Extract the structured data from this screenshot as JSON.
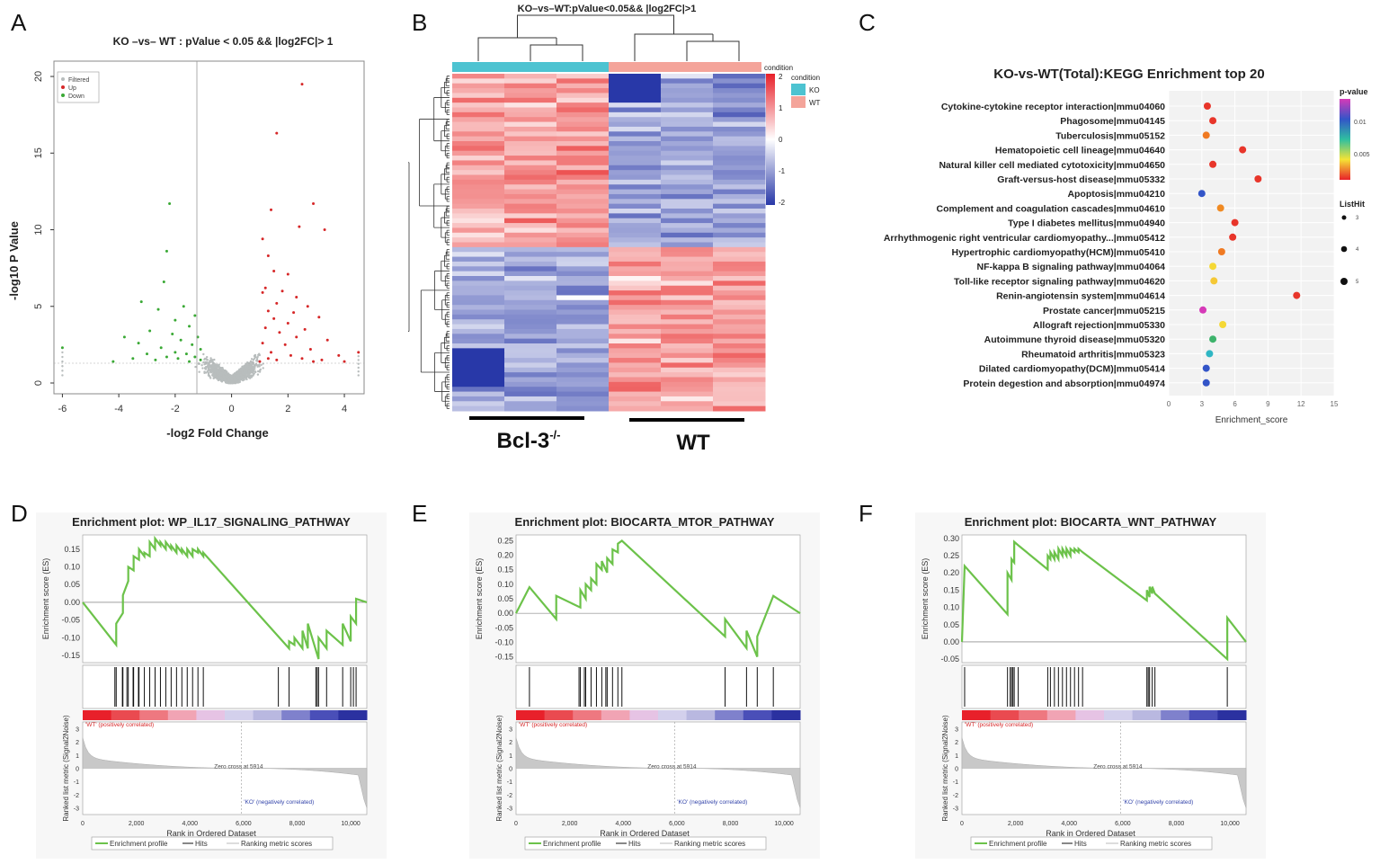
{
  "panels": {
    "a": "A",
    "b": "B",
    "c": "C",
    "d": "D",
    "e": "E",
    "f": "F"
  },
  "volcano": {
    "title": "KO –vs– WT : pValue < 0.05 && |log2FC|> 1",
    "xlabel": "-log2 Fold Change",
    "ylabel": "-log10 P Value",
    "xticks": [
      "-6",
      "-4",
      "-2",
      "0",
      "2",
      "4"
    ],
    "yticks": [
      "0",
      "5",
      "10",
      "15",
      "20"
    ],
    "legend": [
      "Filtered",
      "Up",
      "Down"
    ],
    "colors": {
      "filtered": "#b8bdbd",
      "up": "#d62728",
      "down": "#3aa935"
    }
  },
  "heatmap": {
    "title": "KO–vs–WT:pValue<0.05&& |log2FC|>1",
    "scale_title": "condition",
    "scale_ticks": [
      "2",
      "1",
      "0",
      "-1",
      "-2"
    ],
    "legend_title": "condition",
    "legend": [
      {
        "label": "KO",
        "color": "#4dc3d1"
      },
      {
        "label": "WT",
        "color": "#f4a49a"
      }
    ],
    "group_labels": {
      "ko": "Bcl-3",
      "ko_sup": "-/-",
      "wt": "WT"
    }
  },
  "chart_data": [
    {
      "type": "scatter",
      "id": "kegg",
      "title": "KO-vs-WT(Total):KEGG Enrichment top 20",
      "xlabel": "Enrichment_score",
      "xlim": [
        0,
        15
      ],
      "xticks": [
        "0",
        "3",
        "6",
        "9",
        "12",
        "15"
      ],
      "legend_pvalue_title": "p-value",
      "legend_pvalue_ticks": [
        "0.01",
        "0.005"
      ],
      "legend_size_title": "ListHit",
      "legend_size_ticks": [
        "3",
        "4",
        "5"
      ],
      "terms": [
        "Cytokine-cytokine receptor interaction|mmu04060",
        "Phagosome|mmu04145",
        "Tuberculosis|mmu05152",
        "Hematopoietic cell lineage|mmu04640",
        "Natural killer cell mediated cytotoxicity|mmu04650",
        "Graft-versus-host disease|mmu05332",
        "Apoptosis|mmu04210",
        "Complement and coagulation cascades|mmu04610",
        "Type I diabetes mellitus|mmu04940",
        "Arrhythmogenic right ventricular cardiomyopathy...|mmu05412",
        "Hypertrophic cardiomyopathy(HCM)|mmu05410",
        "NF-kappa B signaling pathway|mmu04064",
        "Toll-like receptor signaling pathway|mmu04620",
        "Renin-angiotensin  system|mmu04614",
        "Prostate cancer|mmu05215",
        "Allograft rejection|mmu05330",
        "Autoimmune thyroid disease|mmu05320",
        "Rheumatoid arthritis|mmu05323",
        "Dilated cardiomyopathy(DCM)|mmu05414",
        "Protein degestion and absorption|mmu04974"
      ],
      "scores": [
        3.5,
        4.0,
        3.4,
        6.7,
        4.0,
        8.1,
        3.0,
        4.7,
        6.0,
        5.8,
        4.8,
        4.0,
        4.1,
        11.6,
        3.1,
        4.9,
        4.0,
        3.7,
        3.4,
        3.4
      ],
      "colors": [
        "#e8352a",
        "#e8352a",
        "#f07a22",
        "#e8352a",
        "#e8352a",
        "#e8352a",
        "#3355c8",
        "#f08a22",
        "#e8352a",
        "#e8352a",
        "#f07a22",
        "#f5d835",
        "#f5c835",
        "#e8352a",
        "#d63ab8",
        "#f5d835",
        "#3db36b",
        "#2fb6c4",
        "#3355c8",
        "#3355c8"
      ]
    },
    {
      "type": "line",
      "id": "gsea-il17",
      "title": "Enrichment plot: WP_IL17_SIGNALING_PATHWAY",
      "xlabel": "Rank in Ordered Dataset",
      "ylabel": "Enrichment score (ES)",
      "ylabel2": "Ranked list metric (Signal2Noise)",
      "ylim": [
        -0.17,
        0.19
      ],
      "yticks": [
        "0.15",
        "0.10",
        "0.05",
        "0.00",
        "-0.05",
        "-0.10",
        "-0.15"
      ],
      "xticks": [
        "0",
        "2,000",
        "4,000",
        "6,000",
        "8,000",
        "10,000"
      ],
      "xmax": 10600,
      "x": [
        0,
        1250,
        1250,
        1500,
        1500,
        1700,
        1700,
        1900,
        1900,
        2100,
        2100,
        2300,
        2300,
        2500,
        2500,
        2700,
        2700,
        2900,
        2900,
        3100,
        3100,
        3300,
        3300,
        3500,
        3500,
        3700,
        3700,
        3900,
        3900,
        4100,
        4100,
        4300,
        4300,
        4500,
        4500,
        7700,
        7700,
        7900,
        7900,
        8200,
        8200,
        8400,
        8400,
        8800,
        8800,
        9100,
        9100,
        9700,
        9700,
        10000,
        10000,
        10200,
        10200,
        10600
      ],
      "es": [
        0,
        -0.12,
        -0.06,
        -0.03,
        0.02,
        0.06,
        0.1,
        0.09,
        0.13,
        0.12,
        0.15,
        0.13,
        0.14,
        0.13,
        0.17,
        0.15,
        0.18,
        0.16,
        0.17,
        0.15,
        0.17,
        0.15,
        0.16,
        0.14,
        0.16,
        0.14,
        0.15,
        0.13,
        0.15,
        0.13,
        0.15,
        0.14,
        0.15,
        0.13,
        0.14,
        -0.13,
        -0.11,
        -0.12,
        -0.1,
        -0.13,
        -0.08,
        -0.13,
        -0.06,
        -0.16,
        -0.1,
        -0.13,
        -0.08,
        -0.12,
        -0.06,
        -0.11,
        -0.04,
        -0.06,
        0.01,
        0
      ],
      "hits": [
        1200,
        1250,
        1480,
        1500,
        1650,
        1700,
        1880,
        1900,
        2080,
        2100,
        2300,
        2500,
        2700,
        2900,
        3100,
        3300,
        3500,
        3700,
        3900,
        4100,
        4300,
        4500,
        7300,
        7700,
        8700,
        8750,
        8800,
        9100,
        9700,
        10000,
        10100,
        10200
      ],
      "pos_label": "'WT' (positively correlated)",
      "neg_label": "'KO' (negatively correlated)",
      "zero_label": "Zero cross at 5914",
      "zero_cross": 5914,
      "metric_ticks": [
        "3",
        "2",
        "1",
        "0",
        "-1",
        "-2",
        "-3"
      ],
      "legend": [
        "Enrichment profile",
        "Hits",
        "Ranking metric scores"
      ]
    },
    {
      "type": "line",
      "id": "gsea-mtor",
      "title": "Enrichment plot: BIOCARTA_MTOR_PATHWAY",
      "xlabel": "Rank in Ordered Dataset",
      "ylabel": "Enrichment score (ES)",
      "ylabel2": "Ranked list metric (Signal2Noise)",
      "ylim": [
        -0.17,
        0.27
      ],
      "yticks": [
        "0.25",
        "0.20",
        "0.15",
        "0.10",
        "0.05",
        "0.00",
        "-0.05",
        "-0.10",
        "-0.15"
      ],
      "xticks": [
        "0",
        "2,000",
        "4,000",
        "6,000",
        "8,000",
        "10,000"
      ],
      "xmax": 10600,
      "x": [
        0,
        500,
        500,
        1500,
        1500,
        2400,
        2400,
        2600,
        2600,
        2800,
        2800,
        3000,
        3000,
        3200,
        3200,
        3400,
        3400,
        3600,
        3600,
        3800,
        3800,
        3950,
        3950,
        7800,
        7800,
        8600,
        8600,
        9000,
        9000,
        9600,
        9600,
        10600
      ],
      "es": [
        0,
        0.09,
        0.09,
        -0.02,
        0.06,
        0.02,
        0.08,
        0.05,
        0.1,
        0.08,
        0.12,
        0.1,
        0.17,
        0.15,
        0.18,
        0.14,
        0.19,
        0.17,
        0.22,
        0.21,
        0.24,
        0.25,
        0.25,
        -0.08,
        -0.02,
        -0.12,
        -0.06,
        -0.15,
        -0.08,
        0.06,
        0.06,
        0
      ],
      "hits": [
        500,
        2350,
        2400,
        2550,
        2600,
        2800,
        3000,
        3200,
        3350,
        3400,
        3600,
        3800,
        3950,
        7800,
        8600,
        9000,
        9600
      ],
      "pos_label": "'WT' (positively correlated)",
      "neg_label": "'KO' (negatively correlated)",
      "zero_label": "Zero cross at 5914",
      "zero_cross": 5914,
      "metric_ticks": [
        "3",
        "2",
        "1",
        "0",
        "-1",
        "-2",
        "-3"
      ],
      "legend": [
        "Enrichment profile",
        "Hits",
        "Ranking metric scores"
      ]
    },
    {
      "type": "line",
      "id": "gsea-wnt",
      "title": "Enrichment plot: BIOCARTA_WNT_PATHWAY",
      "xlabel": "Rank in Ordered Dataset",
      "ylabel": "Enrichment score (ES)",
      "ylabel2": "Ranked list metric (Signal2Noise)",
      "ylim": [
        -0.06,
        0.31
      ],
      "yticks": [
        "0.30",
        "0.25",
        "0.20",
        "0.15",
        "0.10",
        "0.05",
        "0.00",
        "-0.05"
      ],
      "xticks": [
        "0",
        "2,000",
        "4,000",
        "6,000",
        "8,000",
        "10,000"
      ],
      "xmax": 10600,
      "x": [
        0,
        100,
        100,
        1700,
        1700,
        1850,
        1850,
        1950,
        1950,
        2100,
        2100,
        3200,
        3200,
        3300,
        3300,
        3450,
        3450,
        3600,
        3600,
        3750,
        3750,
        3900,
        3900,
        4050,
        4050,
        4200,
        4200,
        4350,
        4350,
        4500,
        4500,
        6900,
        6900,
        7000,
        7000,
        7100,
        7100,
        7200,
        7200,
        9900,
        9900,
        10600
      ],
      "es": [
        0,
        0.22,
        0.22,
        0.08,
        0.2,
        0.18,
        0.24,
        0.23,
        0.29,
        0.28,
        0.28,
        0.21,
        0.25,
        0.24,
        0.26,
        0.24,
        0.26,
        0.24,
        0.27,
        0.25,
        0.27,
        0.25,
        0.27,
        0.25,
        0.27,
        0.26,
        0.27,
        0.26,
        0.27,
        0.26,
        0.26,
        0.12,
        0.15,
        0.13,
        0.16,
        0.14,
        0.16,
        0.14,
        0.14,
        -0.05,
        0.07,
        0
      ],
      "hits": [
        100,
        1700,
        1800,
        1850,
        1900,
        1950,
        2100,
        3200,
        3300,
        3450,
        3600,
        3750,
        3900,
        4050,
        4200,
        4350,
        4500,
        6900,
        6950,
        7000,
        7100,
        7200,
        9900
      ],
      "pos_label": "'WT' (positively correlated)",
      "neg_label": "'KO' (negatively correlated)",
      "zero_label": "Zero cross at 5914",
      "zero_cross": 5914,
      "metric_ticks": [
        "3",
        "2",
        "1",
        "0",
        "-1",
        "-2",
        "-3"
      ],
      "legend": [
        "Enrichment profile",
        "Hits",
        "Ranking metric scores"
      ]
    }
  ]
}
